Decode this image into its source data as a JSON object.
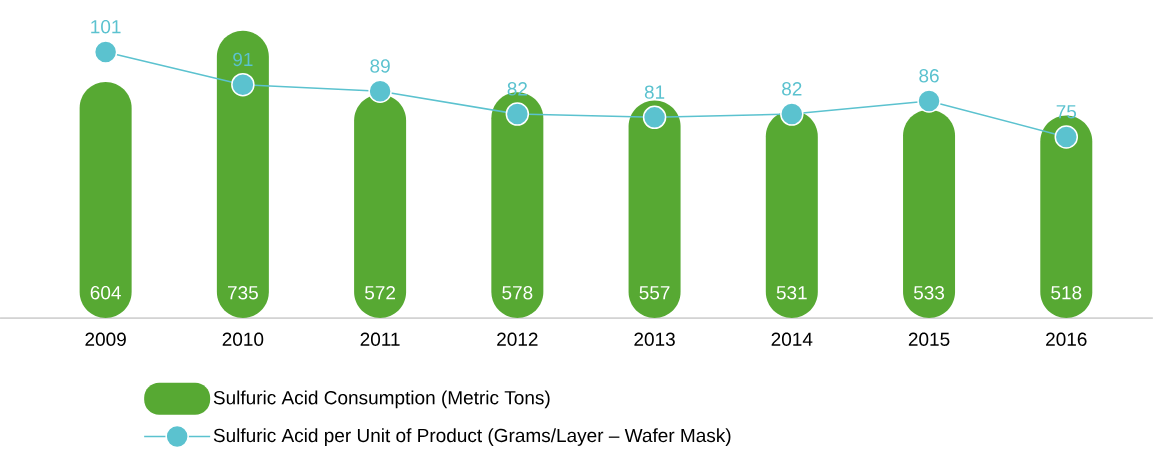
{
  "chart_data": {
    "type": "bar",
    "categories": [
      "2009",
      "2010",
      "2011",
      "2012",
      "2013",
      "2014",
      "2015",
      "2016"
    ],
    "series": [
      {
        "name": "Sulfuric Acid Consumption (Metric Tons)",
        "color": "#57a933",
        "values": [
          604,
          735,
          572,
          578,
          557,
          531,
          533,
          518
        ]
      },
      {
        "name": "Sulfuric Acid per Unit of Product (Grams/Layer – Wafer Mask)",
        "type": "line",
        "axis": "y2",
        "color": "#5bc2cf",
        "values": [
          101,
          91,
          89,
          82,
          81,
          82,
          86,
          75
        ]
      }
    ],
    "marker": "circle",
    "data_labels": true,
    "legend": "bottom",
    "tick_labels": "x"
  }
}
